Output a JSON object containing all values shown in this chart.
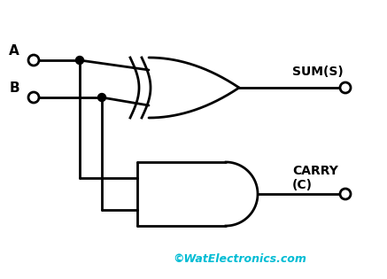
{
  "bg_color": "#ffffff",
  "line_color": "#000000",
  "dot_color": "#000000",
  "watermark_color": "#00bcd4",
  "watermark_text": "©WatElectronics.com",
  "label_A": "A",
  "label_B": "B",
  "label_SUM": "SUM(S)",
  "label_CARRY": "CARRY\n(C)",
  "lw": 2.0,
  "figsize": [
    4.37,
    3.15
  ],
  "dpi": 100
}
